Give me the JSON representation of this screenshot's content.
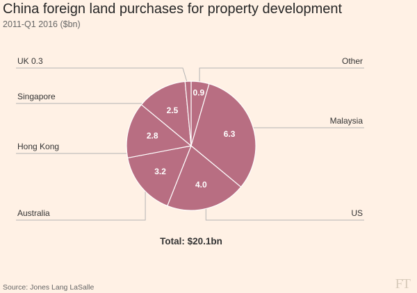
{
  "header": {
    "title": "China foreign land purchases for property development",
    "subtitle": "2011-Q1 2016 ($bn)"
  },
  "chart_data": {
    "type": "pie",
    "title": "China foreign land purchases for property development",
    "subtitle": "2011-Q1 2016 ($bn)",
    "unit": "$bn",
    "slices": [
      {
        "label": "Other",
        "value": 0.9
      },
      {
        "label": "Malaysia",
        "value": 6.3
      },
      {
        "label": "US",
        "value": 4.0
      },
      {
        "label": "Australia",
        "value": 3.2
      },
      {
        "label": "Hong Kong",
        "value": 2.8
      },
      {
        "label": "Singapore",
        "value": 2.5
      },
      {
        "label": "UK",
        "value": 0.3
      }
    ],
    "annotation": "Total: $20.1bn",
    "colors": {
      "slice": "#b86e82",
      "edge": "#ffffff",
      "leader": "#b3b3b3"
    }
  },
  "footer": {
    "total": "Total: $20.1bn",
    "source": "Source: Jones Lang LaSalle",
    "logo": "FT"
  }
}
